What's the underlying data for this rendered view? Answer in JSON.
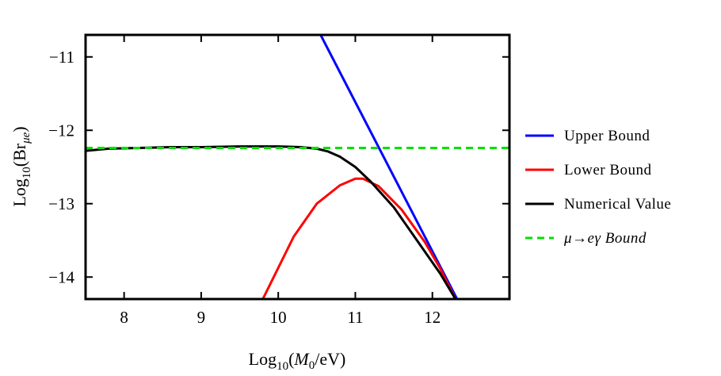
{
  "chart_data": {
    "type": "line",
    "title": "",
    "xlabel": {
      "prefix": "Log",
      "sub": "10",
      "open": "(",
      "var": "M",
      "var_sub": "0",
      "rest": "/eV)"
    },
    "ylabel": {
      "prefix": "Log",
      "sub": "10",
      "open": "(Br",
      "var_sub": "μe",
      "close": ")"
    },
    "xlim": [
      7.5,
      13.0
    ],
    "ylim": [
      -14.3,
      -10.7
    ],
    "xticks": [
      8,
      9,
      10,
      11,
      12
    ],
    "xtick_labels": [
      "8",
      "9",
      "10",
      "11",
      "12"
    ],
    "yticks": [
      -11,
      -12,
      -13,
      -14
    ],
    "ytick_labels": [
      "−11",
      "−12",
      "−13",
      "−14"
    ],
    "grid": false,
    "legend_position": "right-outside",
    "series": [
      {
        "name": "Upper Bound",
        "color": "#0000ff",
        "dash": "solid",
        "x": [
          10.55,
          12.32
        ],
        "y": [
          -10.7,
          -14.3
        ]
      },
      {
        "name": "Lower Bound",
        "color": "#ff0000",
        "dash": "solid",
        "x": [
          9.8,
          10.2,
          10.5,
          10.8,
          11.0,
          11.1,
          11.3,
          11.6,
          11.9,
          12.1,
          12.3
        ],
        "y": [
          -14.3,
          -13.45,
          -13.0,
          -12.75,
          -12.66,
          -12.66,
          -12.76,
          -13.08,
          -13.52,
          -13.88,
          -14.3
        ]
      },
      {
        "name": "Numerical Value",
        "color": "#000000",
        "dash": "solid",
        "x": [
          7.5,
          7.8,
          8.2,
          8.6,
          9.0,
          9.5,
          10.0,
          10.3,
          10.5,
          10.65,
          10.8,
          11.0,
          11.2,
          11.5,
          11.8,
          12.1,
          12.3
        ],
        "y": [
          -12.28,
          -12.25,
          -12.24,
          -12.23,
          -12.23,
          -12.22,
          -12.22,
          -12.23,
          -12.25,
          -12.29,
          -12.36,
          -12.5,
          -12.7,
          -13.05,
          -13.5,
          -13.95,
          -14.3
        ]
      },
      {
        "name": "μ→eγ Bound",
        "color": "#00e000",
        "dash": "dashed",
        "x": [
          7.5,
          13.0
        ],
        "y": [
          -12.24,
          -12.24
        ]
      }
    ]
  }
}
